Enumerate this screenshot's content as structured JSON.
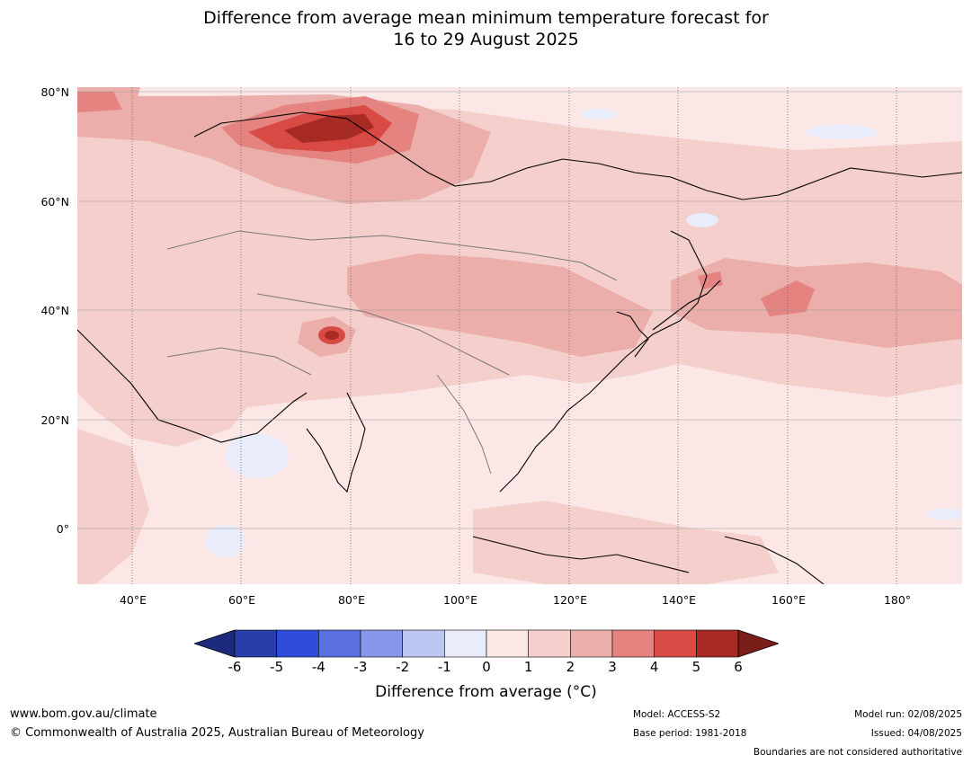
{
  "title": {
    "line1": "Difference from average mean minimum temperature forecast for",
    "line2": "16 to 29 August 2025"
  },
  "map": {
    "lat_labels": [
      "80°N",
      "60°N",
      "40°N",
      "20°N",
      "0°"
    ],
    "lon_labels": [
      "40°E",
      "60°E",
      "80°E",
      "100°E",
      "120°E",
      "140°E",
      "160°E",
      "180°"
    ],
    "extent": {
      "lon_min": 30,
      "lon_max": 192,
      "lat_min": -10,
      "lat_max": 81
    }
  },
  "colorbar": {
    "ticks": [
      "-6",
      "-5",
      "-4",
      "-3",
      "-2",
      "-1",
      "0",
      "1",
      "2",
      "3",
      "4",
      "5",
      "6"
    ],
    "colors": [
      "#1b2a7a",
      "#283ea8",
      "#2f4cdb",
      "#5a6fe0",
      "#8796e8",
      "#bcc6f3",
      "#e8ecfb",
      "#fbe8e6",
      "#f4cfcb",
      "#ebaeaa",
      "#e48380",
      "#d84a43",
      "#a82a25",
      "#7a1e1a"
    ],
    "label": "Difference from average (°C)"
  },
  "footer": {
    "website": "www.bom.gov.au/climate",
    "copyright": "© Commonwealth of Australia 2025, Australian Bureau of Meteorology",
    "model": "Model: ACCESS-S2",
    "base_period": "Base period: 1981-2018",
    "model_run": "Model run: 02/08/2025",
    "issued": "Issued: 04/08/2025",
    "disclaimer": "Boundaries are not considered authoritative"
  }
}
